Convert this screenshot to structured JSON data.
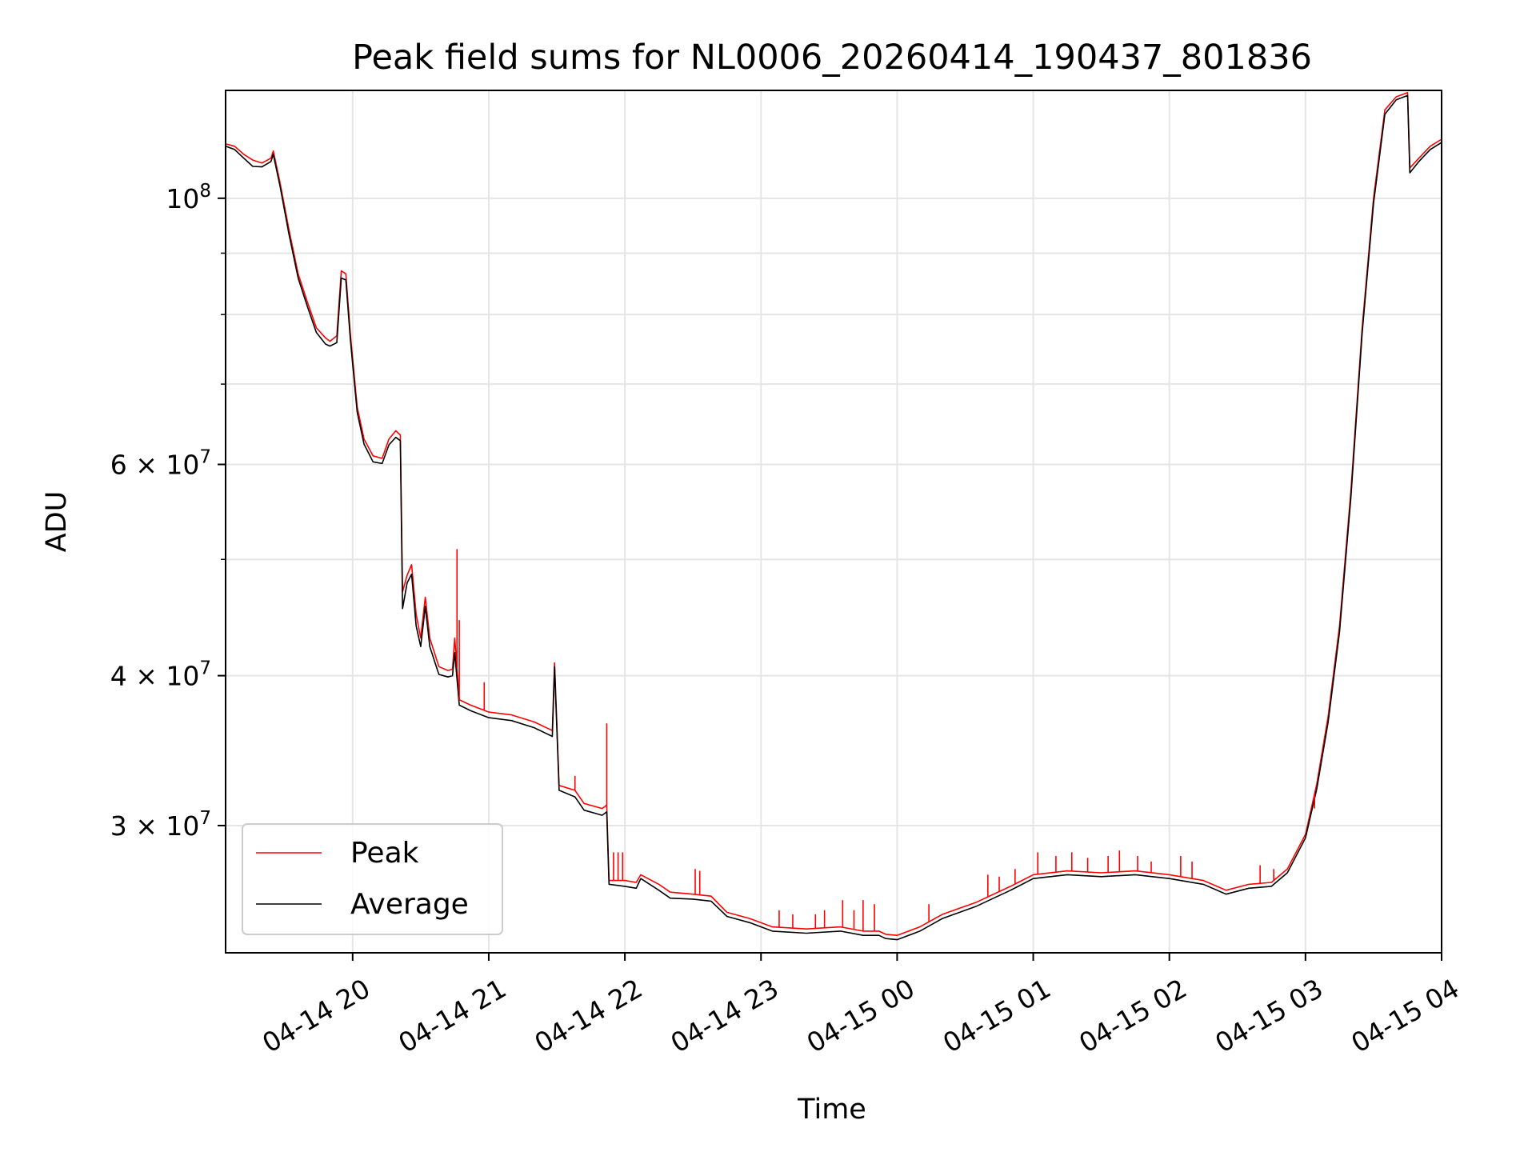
{
  "chart_data": {
    "type": "line",
    "title": "Peak field sums for NL0006_20260414_190437_801836",
    "xlabel": "Time",
    "ylabel": "ADU",
    "y_scale": "log",
    "grid": true,
    "legend_position": "lower-left",
    "xlim": [
      "2026-04-14 19:04",
      "2026-04-15 04:00"
    ],
    "ylim": [
      23500000,
      123000000
    ],
    "x_ticks": [
      {
        "value": "2026-04-14 20:00",
        "label": "04-14 20"
      },
      {
        "value": "2026-04-14 21:00",
        "label": "04-14 21"
      },
      {
        "value": "2026-04-14 22:00",
        "label": "04-14 22"
      },
      {
        "value": "2026-04-14 23:00",
        "label": "04-14 23"
      },
      {
        "value": "2026-04-15 00:00",
        "label": "04-15 00"
      },
      {
        "value": "2026-04-15 01:00",
        "label": "04-15 01"
      },
      {
        "value": "2026-04-15 02:00",
        "label": "04-15 02"
      },
      {
        "value": "2026-04-15 03:00",
        "label": "04-15 03"
      },
      {
        "value": "2026-04-15 04:00",
        "label": "04-15 04"
      }
    ],
    "y_major_ticks": [
      {
        "value": 30000000,
        "base": "3 × 10",
        "exp": "7"
      },
      {
        "value": 40000000,
        "base": "4 × 10",
        "exp": "7"
      },
      {
        "value": 60000000,
        "base": "6 × 10",
        "exp": "7"
      },
      {
        "value": 100000000,
        "base": "10",
        "exp": "8"
      }
    ],
    "y_minor_ticks": [
      50000000,
      70000000,
      80000000,
      90000000
    ],
    "series": [
      {
        "name": "Peak",
        "color": "#ff0000",
        "points": [
          [
            "2026-04-14 19:04",
            111000000
          ],
          [
            "2026-04-14 19:08",
            110500000
          ],
          [
            "2026-04-14 19:12",
            108800000
          ],
          [
            "2026-04-14 19:16",
            107600000
          ],
          [
            "2026-04-14 19:20",
            107000000
          ],
          [
            "2026-04-14 19:24",
            108000000
          ],
          [
            "2026-04-14 19:25",
            109500000
          ],
          [
            "2026-04-14 19:28",
            103000000
          ],
          [
            "2026-04-14 19:32",
            94000000
          ],
          [
            "2026-04-14 19:36",
            86500000
          ],
          [
            "2026-04-14 19:40",
            82000000
          ],
          [
            "2026-04-14 19:44",
            78000000
          ],
          [
            "2026-04-14 19:48",
            76500000
          ],
          [
            "2026-04-14 19:50",
            76000000
          ],
          [
            "2026-04-14 19:53",
            76800000
          ],
          [
            "2026-04-14 19:55",
            87000000
          ],
          [
            "2026-04-14 19:57",
            86500000
          ],
          [
            "2026-04-14 19:59",
            77000000
          ],
          [
            "2026-04-14 20:02",
            67000000
          ],
          [
            "2026-04-14 20:05",
            63000000
          ],
          [
            "2026-04-14 20:09",
            61000000
          ],
          [
            "2026-04-14 20:13",
            60700000
          ],
          [
            "2026-04-14 20:16",
            63000000
          ],
          [
            "2026-04-14 20:19",
            64000000
          ],
          [
            "2026-04-14 20:21",
            63500000
          ],
          [
            "2026-04-14 20:22",
            47000000
          ],
          [
            "2026-04-14 20:24",
            48500000
          ],
          [
            "2026-04-14 20:26",
            49500000
          ],
          [
            "2026-04-14 20:28",
            45000000
          ],
          [
            "2026-04-14 20:30",
            43000000
          ],
          [
            "2026-04-14 20:32",
            46500000
          ],
          [
            "2026-04-14 20:34",
            43000000
          ],
          [
            "2026-04-14 20:38",
            40700000
          ],
          [
            "2026-04-14 20:42",
            40400000
          ],
          [
            "2026-04-14 20:44",
            40500000
          ],
          [
            "2026-04-14 20:45",
            43000000
          ],
          [
            "2026-04-14 20:47",
            38200000
          ],
          [
            "2026-04-14 20:52",
            37800000
          ],
          [
            "2026-04-14 21:00",
            37300000
          ],
          [
            "2026-04-14 21:10",
            37100000
          ],
          [
            "2026-04-14 21:20",
            36600000
          ],
          [
            "2026-04-14 21:28",
            36000000
          ],
          [
            "2026-04-14 21:29",
            41000000
          ],
          [
            "2026-04-14 21:31",
            32400000
          ],
          [
            "2026-04-14 21:38",
            32100000
          ],
          [
            "2026-04-14 21:42",
            31300000
          ],
          [
            "2026-04-14 21:50",
            31000000
          ],
          [
            "2026-04-14 21:52",
            31200000
          ],
          [
            "2026-04-14 21:53",
            27000000
          ],
          [
            "2026-04-14 22:00",
            27000000
          ],
          [
            "2026-04-14 22:05",
            26900000
          ],
          [
            "2026-04-14 22:07",
            27300000
          ],
          [
            "2026-04-14 22:15",
            26800000
          ],
          [
            "2026-04-14 22:20",
            26400000
          ],
          [
            "2026-04-14 22:30",
            26300000
          ],
          [
            "2026-04-14 22:38",
            26200000
          ],
          [
            "2026-04-14 22:45",
            25400000
          ],
          [
            "2026-04-14 22:55",
            25100000
          ],
          [
            "2026-04-14 23:05",
            24700000
          ],
          [
            "2026-04-14 23:20",
            24600000
          ],
          [
            "2026-04-14 23:35",
            24700000
          ],
          [
            "2026-04-14 23:45",
            24500000
          ],
          [
            "2026-04-14 23:52",
            24500000
          ],
          [
            "2026-04-14 23:55",
            24350000
          ],
          [
            "2026-04-15 00:00",
            24300000
          ],
          [
            "2026-04-15 00:10",
            24700000
          ],
          [
            "2026-04-15 00:20",
            25300000
          ],
          [
            "2026-04-15 00:35",
            25900000
          ],
          [
            "2026-04-15 00:50",
            26700000
          ],
          [
            "2026-04-15 01:00",
            27300000
          ],
          [
            "2026-04-15 01:15",
            27500000
          ],
          [
            "2026-04-15 01:30",
            27400000
          ],
          [
            "2026-04-15 01:45",
            27500000
          ],
          [
            "2026-04-15 02:00",
            27300000
          ],
          [
            "2026-04-15 02:15",
            27000000
          ],
          [
            "2026-04-15 02:25",
            26500000
          ],
          [
            "2026-04-15 02:35",
            26800000
          ],
          [
            "2026-04-15 02:45",
            26900000
          ],
          [
            "2026-04-15 02:52",
            27600000
          ],
          [
            "2026-04-15 03:00",
            29500000
          ],
          [
            "2026-04-15 03:05",
            32500000
          ],
          [
            "2026-04-15 03:10",
            37000000
          ],
          [
            "2026-04-15 03:15",
            44000000
          ],
          [
            "2026-04-15 03:20",
            57000000
          ],
          [
            "2026-04-15 03:25",
            78000000
          ],
          [
            "2026-04-15 03:30",
            100000000
          ],
          [
            "2026-04-15 03:35",
            118500000
          ],
          [
            "2026-04-15 03:40",
            121500000
          ],
          [
            "2026-04-15 03:45",
            122500000
          ],
          [
            "2026-04-15 03:46",
            106000000
          ],
          [
            "2026-04-15 03:50",
            108000000
          ],
          [
            "2026-04-15 03:55",
            110500000
          ],
          [
            "2026-04-15 04:00",
            112000000
          ]
        ]
      },
      {
        "name": "Average",
        "color": "#000000",
        "points": [
          [
            "2026-04-14 19:04",
            110500000
          ],
          [
            "2026-04-14 19:08",
            109800000
          ],
          [
            "2026-04-14 19:12",
            108000000
          ],
          [
            "2026-04-14 19:16",
            106300000
          ],
          [
            "2026-04-14 19:20",
            106200000
          ],
          [
            "2026-04-14 19:24",
            107300000
          ],
          [
            "2026-04-14 19:25",
            108800000
          ],
          [
            "2026-04-14 19:28",
            102300000
          ],
          [
            "2026-04-14 19:32",
            93200000
          ],
          [
            "2026-04-14 19:36",
            85800000
          ],
          [
            "2026-04-14 19:40",
            81300000
          ],
          [
            "2026-04-14 19:44",
            77300000
          ],
          [
            "2026-04-14 19:48",
            75600000
          ],
          [
            "2026-04-14 19:50",
            75300000
          ],
          [
            "2026-04-14 19:53",
            75800000
          ],
          [
            "2026-04-14 19:55",
            85800000
          ],
          [
            "2026-04-14 19:57",
            85500000
          ],
          [
            "2026-04-14 19:59",
            76200000
          ],
          [
            "2026-04-14 20:02",
            66300000
          ],
          [
            "2026-04-14 20:05",
            62400000
          ],
          [
            "2026-04-14 20:09",
            60300000
          ],
          [
            "2026-04-14 20:13",
            60100000
          ],
          [
            "2026-04-14 20:16",
            62300000
          ],
          [
            "2026-04-14 20:19",
            63200000
          ],
          [
            "2026-04-14 20:21",
            62800000
          ],
          [
            "2026-04-14 20:22",
            45500000
          ],
          [
            "2026-04-14 20:24",
            47800000
          ],
          [
            "2026-04-14 20:26",
            48600000
          ],
          [
            "2026-04-14 20:28",
            44000000
          ],
          [
            "2026-04-14 20:30",
            42300000
          ],
          [
            "2026-04-14 20:32",
            45700000
          ],
          [
            "2026-04-14 20:34",
            42300000
          ],
          [
            "2026-04-14 20:38",
            40100000
          ],
          [
            "2026-04-14 20:42",
            39900000
          ],
          [
            "2026-04-14 20:44",
            40000000
          ],
          [
            "2026-04-14 20:45",
            41800000
          ],
          [
            "2026-04-14 20:47",
            37800000
          ],
          [
            "2026-04-14 20:52",
            37400000
          ],
          [
            "2026-04-14 21:00",
            36900000
          ],
          [
            "2026-04-14 21:10",
            36700000
          ],
          [
            "2026-04-14 21:20",
            36200000
          ],
          [
            "2026-04-14 21:28",
            35600000
          ],
          [
            "2026-04-14 21:29",
            40700000
          ],
          [
            "2026-04-14 21:31",
            32100000
          ],
          [
            "2026-04-14 21:38",
            31700000
          ],
          [
            "2026-04-14 21:42",
            30900000
          ],
          [
            "2026-04-14 21:50",
            30600000
          ],
          [
            "2026-04-14 21:52",
            30800000
          ],
          [
            "2026-04-14 21:53",
            26800000
          ],
          [
            "2026-04-14 22:00",
            26700000
          ],
          [
            "2026-04-14 22:05",
            26600000
          ],
          [
            "2026-04-14 22:07",
            27100000
          ],
          [
            "2026-04-14 22:15",
            26500000
          ],
          [
            "2026-04-14 22:20",
            26100000
          ],
          [
            "2026-04-14 22:30",
            26050000
          ],
          [
            "2026-04-14 22:38",
            25950000
          ],
          [
            "2026-04-14 22:45",
            25200000
          ],
          [
            "2026-04-14 22:55",
            24900000
          ],
          [
            "2026-04-14 23:05",
            24500000
          ],
          [
            "2026-04-14 23:20",
            24400000
          ],
          [
            "2026-04-14 23:35",
            24500000
          ],
          [
            "2026-04-14 23:45",
            24300000
          ],
          [
            "2026-04-14 23:52",
            24300000
          ],
          [
            "2026-04-14 23:55",
            24150000
          ],
          [
            "2026-04-15 00:00",
            24100000
          ],
          [
            "2026-04-15 00:10",
            24500000
          ],
          [
            "2026-04-15 00:20",
            25100000
          ],
          [
            "2026-04-15 00:35",
            25700000
          ],
          [
            "2026-04-15 00:50",
            26500000
          ],
          [
            "2026-04-15 01:00",
            27100000
          ],
          [
            "2026-04-15 01:15",
            27300000
          ],
          [
            "2026-04-15 01:30",
            27200000
          ],
          [
            "2026-04-15 01:45",
            27300000
          ],
          [
            "2026-04-15 02:00",
            27100000
          ],
          [
            "2026-04-15 02:15",
            26800000
          ],
          [
            "2026-04-15 02:25",
            26300000
          ],
          [
            "2026-04-15 02:35",
            26600000
          ],
          [
            "2026-04-15 02:45",
            26700000
          ],
          [
            "2026-04-15 02:52",
            27400000
          ],
          [
            "2026-04-15 03:00",
            29300000
          ],
          [
            "2026-04-15 03:05",
            32200000
          ],
          [
            "2026-04-15 03:10",
            36600000
          ],
          [
            "2026-04-15 03:15",
            43500000
          ],
          [
            "2026-04-15 03:20",
            56300000
          ],
          [
            "2026-04-15 03:25",
            77200000
          ],
          [
            "2026-04-15 03:30",
            99000000
          ],
          [
            "2026-04-15 03:35",
            117500000
          ],
          [
            "2026-04-15 03:40",
            120800000
          ],
          [
            "2026-04-15 03:45",
            121800000
          ],
          [
            "2026-04-15 03:46",
            105000000
          ],
          [
            "2026-04-15 03:50",
            107300000
          ],
          [
            "2026-04-15 03:55",
            109800000
          ],
          [
            "2026-04-15 04:00",
            111300000
          ]
        ]
      }
    ],
    "spikes": {
      "series": "Peak",
      "color": "#ff0000",
      "items": [
        [
          "2026-04-14 20:47",
          44500000
        ],
        [
          "2026-04-14 20:46",
          51000000
        ],
        [
          "2026-04-14 20:58",
          39500000
        ],
        [
          "2026-04-14 21:38",
          33000000
        ],
        [
          "2026-04-14 21:52",
          36500000
        ],
        [
          "2026-04-14 21:55",
          28500000
        ],
        [
          "2026-04-14 21:57",
          28500000
        ],
        [
          "2026-04-14 21:59",
          28500000
        ],
        [
          "2026-04-14 22:31",
          27600000
        ],
        [
          "2026-04-14 22:33",
          27500000
        ],
        [
          "2026-04-14 23:08",
          25500000
        ],
        [
          "2026-04-14 23:14",
          25300000
        ],
        [
          "2026-04-14 23:24",
          25300000
        ],
        [
          "2026-04-14 23:28",
          25500000
        ],
        [
          "2026-04-14 23:36",
          26000000
        ],
        [
          "2026-04-14 23:41",
          25500000
        ],
        [
          "2026-04-14 23:45",
          26000000
        ],
        [
          "2026-04-14 23:50",
          25800000
        ],
        [
          "2026-04-15 00:14",
          25800000
        ],
        [
          "2026-04-15 00:40",
          27300000
        ],
        [
          "2026-04-15 00:45",
          27200000
        ],
        [
          "2026-04-15 00:52",
          27600000
        ],
        [
          "2026-04-15 01:02",
          28500000
        ],
        [
          "2026-04-15 01:10",
          28300000
        ],
        [
          "2026-04-15 01:17",
          28500000
        ],
        [
          "2026-04-15 01:24",
          28200000
        ],
        [
          "2026-04-15 01:33",
          28300000
        ],
        [
          "2026-04-15 01:38",
          28600000
        ],
        [
          "2026-04-15 01:46",
          28300000
        ],
        [
          "2026-04-15 01:52",
          28000000
        ],
        [
          "2026-04-15 02:05",
          28300000
        ],
        [
          "2026-04-15 02:10",
          28000000
        ],
        [
          "2026-04-15 02:40",
          27800000
        ],
        [
          "2026-04-15 02:46",
          27600000
        ],
        [
          "2026-04-15 02:55",
          28300000
        ],
        [
          "2026-04-15 03:04",
          31000000
        ]
      ]
    }
  }
}
